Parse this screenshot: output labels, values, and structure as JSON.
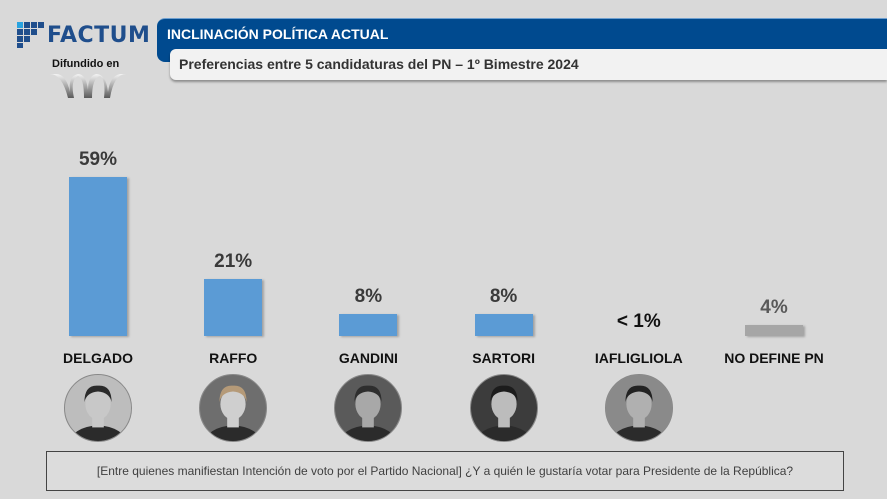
{
  "brand": {
    "name": "FACTUM",
    "distributed_label": "Difundido en",
    "brand_color": "#1f4e8c"
  },
  "header": {
    "title": "INCLINACIÓN POLÍTICA ACTUAL",
    "subtitle": "Preferencias entre 5 candidaturas del PN – 1º Bimestre 2024",
    "title_bg": "#004a8f"
  },
  "chart_data": {
    "type": "bar",
    "title": "Preferencias entre 5 candidaturas del PN – 1º Bimestre 2024",
    "xlabel": "",
    "ylabel": "",
    "ylim": [
      0,
      60
    ],
    "grid": false,
    "categories": [
      "DELGADO",
      "RAFFO",
      "GANDINI",
      "SARTORI",
      "IAFLIGLIOLA",
      "NO DEFINE PN"
    ],
    "values": [
      59,
      21,
      8,
      8,
      0.5,
      4
    ],
    "value_labels": [
      "59%",
      "21%",
      "8%",
      "8%",
      "< 1%",
      "4%"
    ],
    "colors": [
      "#5b9bd5",
      "#5b9bd5",
      "#5b9bd5",
      "#5b9bd5",
      "#5b9bd5",
      "#a6a6a6"
    ],
    "hidden_bars": [
      false,
      false,
      false,
      false,
      true,
      false
    ],
    "photos": [
      {
        "name": "delgado-photo",
        "present": true
      },
      {
        "name": "raffo-photo",
        "present": true
      },
      {
        "name": "gandini-photo",
        "present": true
      },
      {
        "name": "sartori-photo",
        "present": true
      },
      {
        "name": "iafligliola-photo",
        "present": true
      },
      {
        "name": "no-define-pn-photo",
        "present": false
      }
    ]
  },
  "footer": {
    "question": "[Entre quienes manifiestan Intención de voto por el Partido Nacional] ¿Y a quién le gustaría votar para Presidente de la República?"
  }
}
